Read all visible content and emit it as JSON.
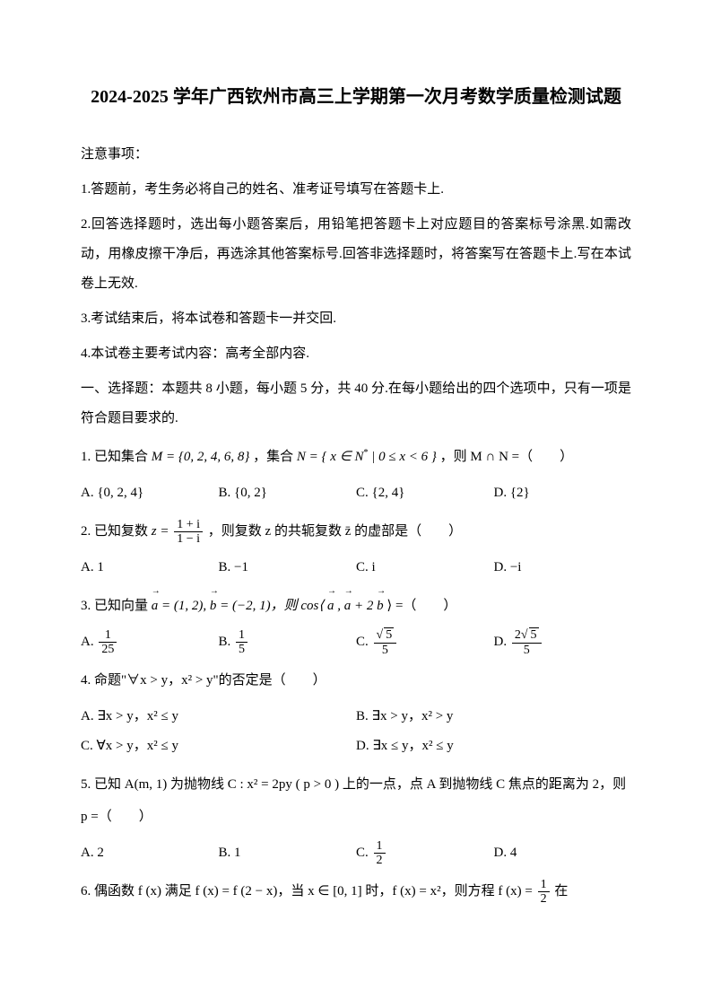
{
  "title": "2024-2025 学年广西钦州市高三上学期第一次月考数学质量检测试题",
  "notes_header": "注意事项：",
  "notes": [
    "1.答题前，考生务必将自己的姓名、准考证号填写在答题卡上.",
    "2.回答选择题时，选出每小题答案后，用铅笔把答题卡上对应题目的答案标号涂黑.如需改动，用橡皮擦干净后，再选涂其他答案标号.回答非选择题时，将答案写在答题卡上.写在本试卷上无效.",
    "3.考试结束后，将本试卷和答题卡一并交回.",
    "4.本试卷主要考试内容：高考全部内容."
  ],
  "section1": "一、选择题：本题共 8 小题，每小题 5 分，共 40 分.在每小题给出的四个选项中，只有一项是符合题目要求的.",
  "q1": {
    "text_a": "1. 已知集合 ",
    "set_m": "M = {0, 2, 4, 6, 8}",
    "text_b": "，集合 ",
    "set_n_prefix": "N = { x ∈ N",
    "set_n_suffix": " | 0 ≤ x < 6 }",
    "text_c": "，则 M ∩ N =（　　）",
    "optA": "A.  {0, 2, 4}",
    "optB": "B.  {0, 2}",
    "optC": "C.  {2, 4}",
    "optD": "D.  {2}"
  },
  "q2": {
    "text_a": "2. 已知复数 ",
    "z_eq": "z = ",
    "num": "1 + i",
    "den": "1 − i",
    "text_b": "，则复数 z 的共轭复数 z̄ 的虚部是（　　）",
    "optA": "A.  1",
    "optB": "B.  −1",
    "optC": "C.  i",
    "optD": "D.  −i"
  },
  "q3": {
    "text_a": "3. 已知向量 ",
    "a": "a",
    "a_val": " = (1, 2), ",
    "b": "b",
    "b_val": " = (−2, 1)，则 cos⟨",
    "a2": "a",
    "comma": ", ",
    "a3": "a",
    "plus": " + 2",
    "b2": "b",
    "text_b": "⟩ =（　　）",
    "optA_label": "A.  ",
    "optA_num": "1",
    "optA_den": "25",
    "optB_label": "B.  ",
    "optB_num": "1",
    "optB_den": "5",
    "optC_label": "C.  ",
    "optC_num_sqrt": "5",
    "optC_den": "5",
    "optD_label": "D.  ",
    "optD_num_pre": "2",
    "optD_num_sqrt": "5",
    "optD_den": "5"
  },
  "q4": {
    "text": "4. 命题\"∀x > y，x² > y\"的否定是（　　）",
    "optA": "A.  ∃x > y，x² ≤ y",
    "optB": "B.  ∃x > y，x² > y",
    "optC": "C.  ∀x > y，x² ≤ y",
    "optD": "D.  ∃x ≤ y，x² ≤ y"
  },
  "q5": {
    "text": "5. 已知 A(m, 1) 为抛物线 C : x² = 2py ( p > 0 ) 上的一点，点 A 到抛物线 C 焦点的距离为 2，则 p =（　　）",
    "optA": "A.  2",
    "optB": "B.  1",
    "optC_label": "C.  ",
    "optC_num": "1",
    "optC_den": "2",
    "optD": "D.  4"
  },
  "q6": {
    "text_a": "6. 偶函数 f (x) 满足 f (x) = f (2 − x)，当 x ∈ [0, 1] 时，f (x) = x²，则方程 f (x) = ",
    "num": "1",
    "den": "2",
    "text_b": " 在"
  }
}
